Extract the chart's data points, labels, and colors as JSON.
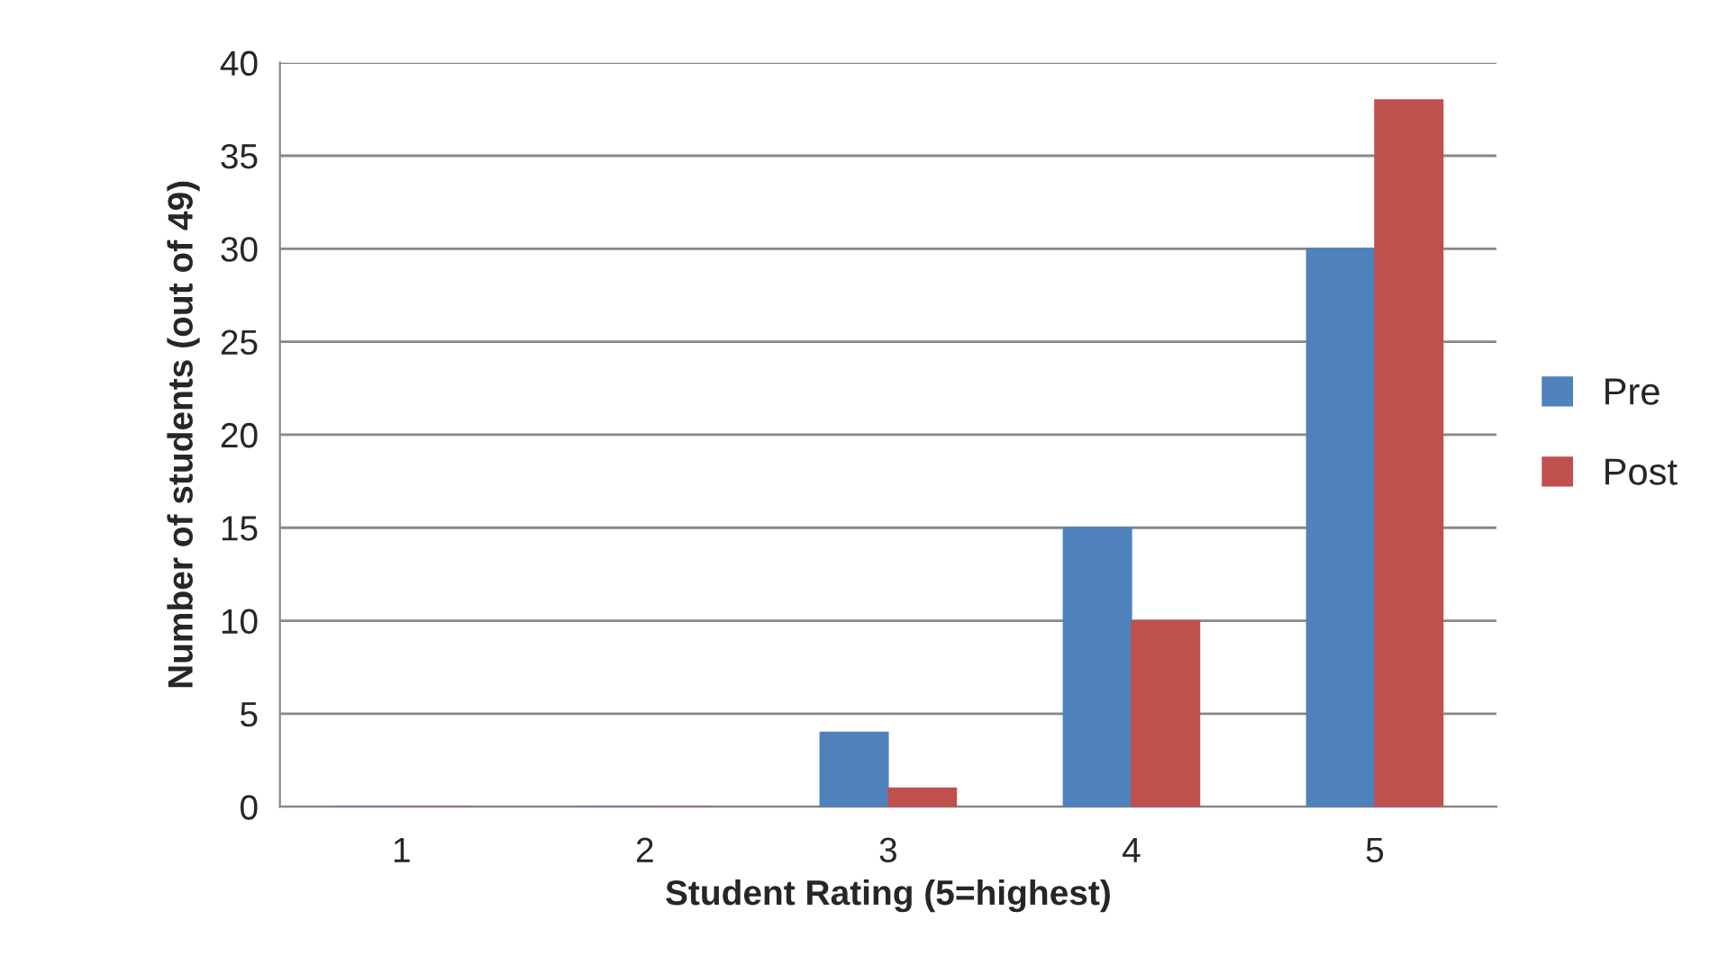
{
  "chart_data": {
    "type": "bar",
    "xlabel": "Student Rating (5=highest)",
    "ylabel": "Number of students (out of 49)",
    "categories": [
      "1",
      "2",
      "3",
      "4",
      "5"
    ],
    "series": [
      {
        "name": "Pre",
        "color": "#4f81bd",
        "values": [
          0,
          0,
          4,
          15,
          30
        ]
      },
      {
        "name": "Post",
        "color": "#c0504d",
        "values": [
          0,
          0,
          1,
          10,
          38
        ]
      }
    ],
    "ylim": [
      0,
      40
    ],
    "yticks": [
      0,
      5,
      10,
      15,
      20,
      25,
      30,
      35,
      40
    ],
    "grid": "y",
    "legend": "right"
  }
}
